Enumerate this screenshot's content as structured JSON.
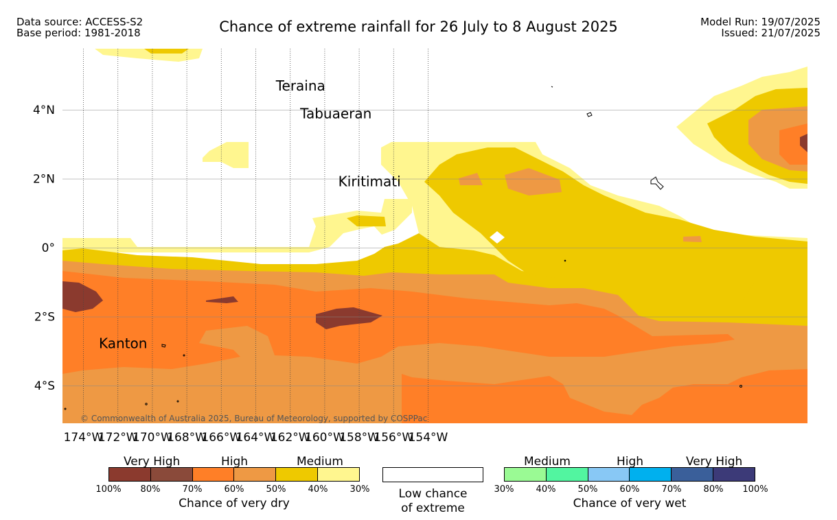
{
  "header": {
    "data_source": "Data source: ACCESS-S2",
    "base_period": "Base period: 1981-2018",
    "title": "Chance of extreme rainfall for 26 July to 8 August 2025",
    "model_run": "Model Run: 19/07/2025",
    "issued": "Issued: 21/07/2025"
  },
  "map": {
    "lon_labels": [
      "174°W",
      "172°W",
      "170°W",
      "168°W",
      "166°W",
      "164°W",
      "162°W",
      "160°W",
      "158°W",
      "156°W",
      "154°W"
    ],
    "lat_labels": [
      "4°N",
      "2°N",
      "0°",
      "2°S",
      "4°S"
    ],
    "places": [
      {
        "name": "Teraina",
        "lon": -161.4,
        "lat": 4.68
      },
      {
        "name": "Tabuaeran",
        "lon": -159.35,
        "lat": 3.87
      },
      {
        "name": "Kiritimati",
        "lon": -157.4,
        "lat": 1.9
      },
      {
        "name": "Kanton",
        "lon": -171.7,
        "lat": -2.8
      }
    ],
    "copyright": "© Commonwealth of Australia 2025, Bureau of Meteorology, supported by COSPPac"
  },
  "legend": {
    "dry": {
      "groups": [
        "Very High",
        "High",
        "Medium"
      ],
      "colors": [
        "#8b3a2e",
        "#8a4a3a",
        "#ff7f27",
        "#ee9944",
        "#eec900",
        "#fff68f"
      ],
      "ticks": [
        "100%",
        "80%",
        "70%",
        "60%",
        "50%",
        "40%",
        "30%"
      ],
      "caption": "Chance of very dry"
    },
    "low": {
      "line1": "Low chance",
      "line2": "of extreme"
    },
    "wet": {
      "groups": [
        "Medium",
        "High",
        "Very High"
      ],
      "colors": [
        "#9afa94",
        "#52f5a0",
        "#88c8f5",
        "#00b0ee",
        "#3a5f9a",
        "#3c3a78"
      ],
      "ticks": [
        "30%",
        "40%",
        "50%",
        "60%",
        "70%",
        "80%",
        "100%"
      ],
      "caption": "Chance of very wet"
    }
  }
}
